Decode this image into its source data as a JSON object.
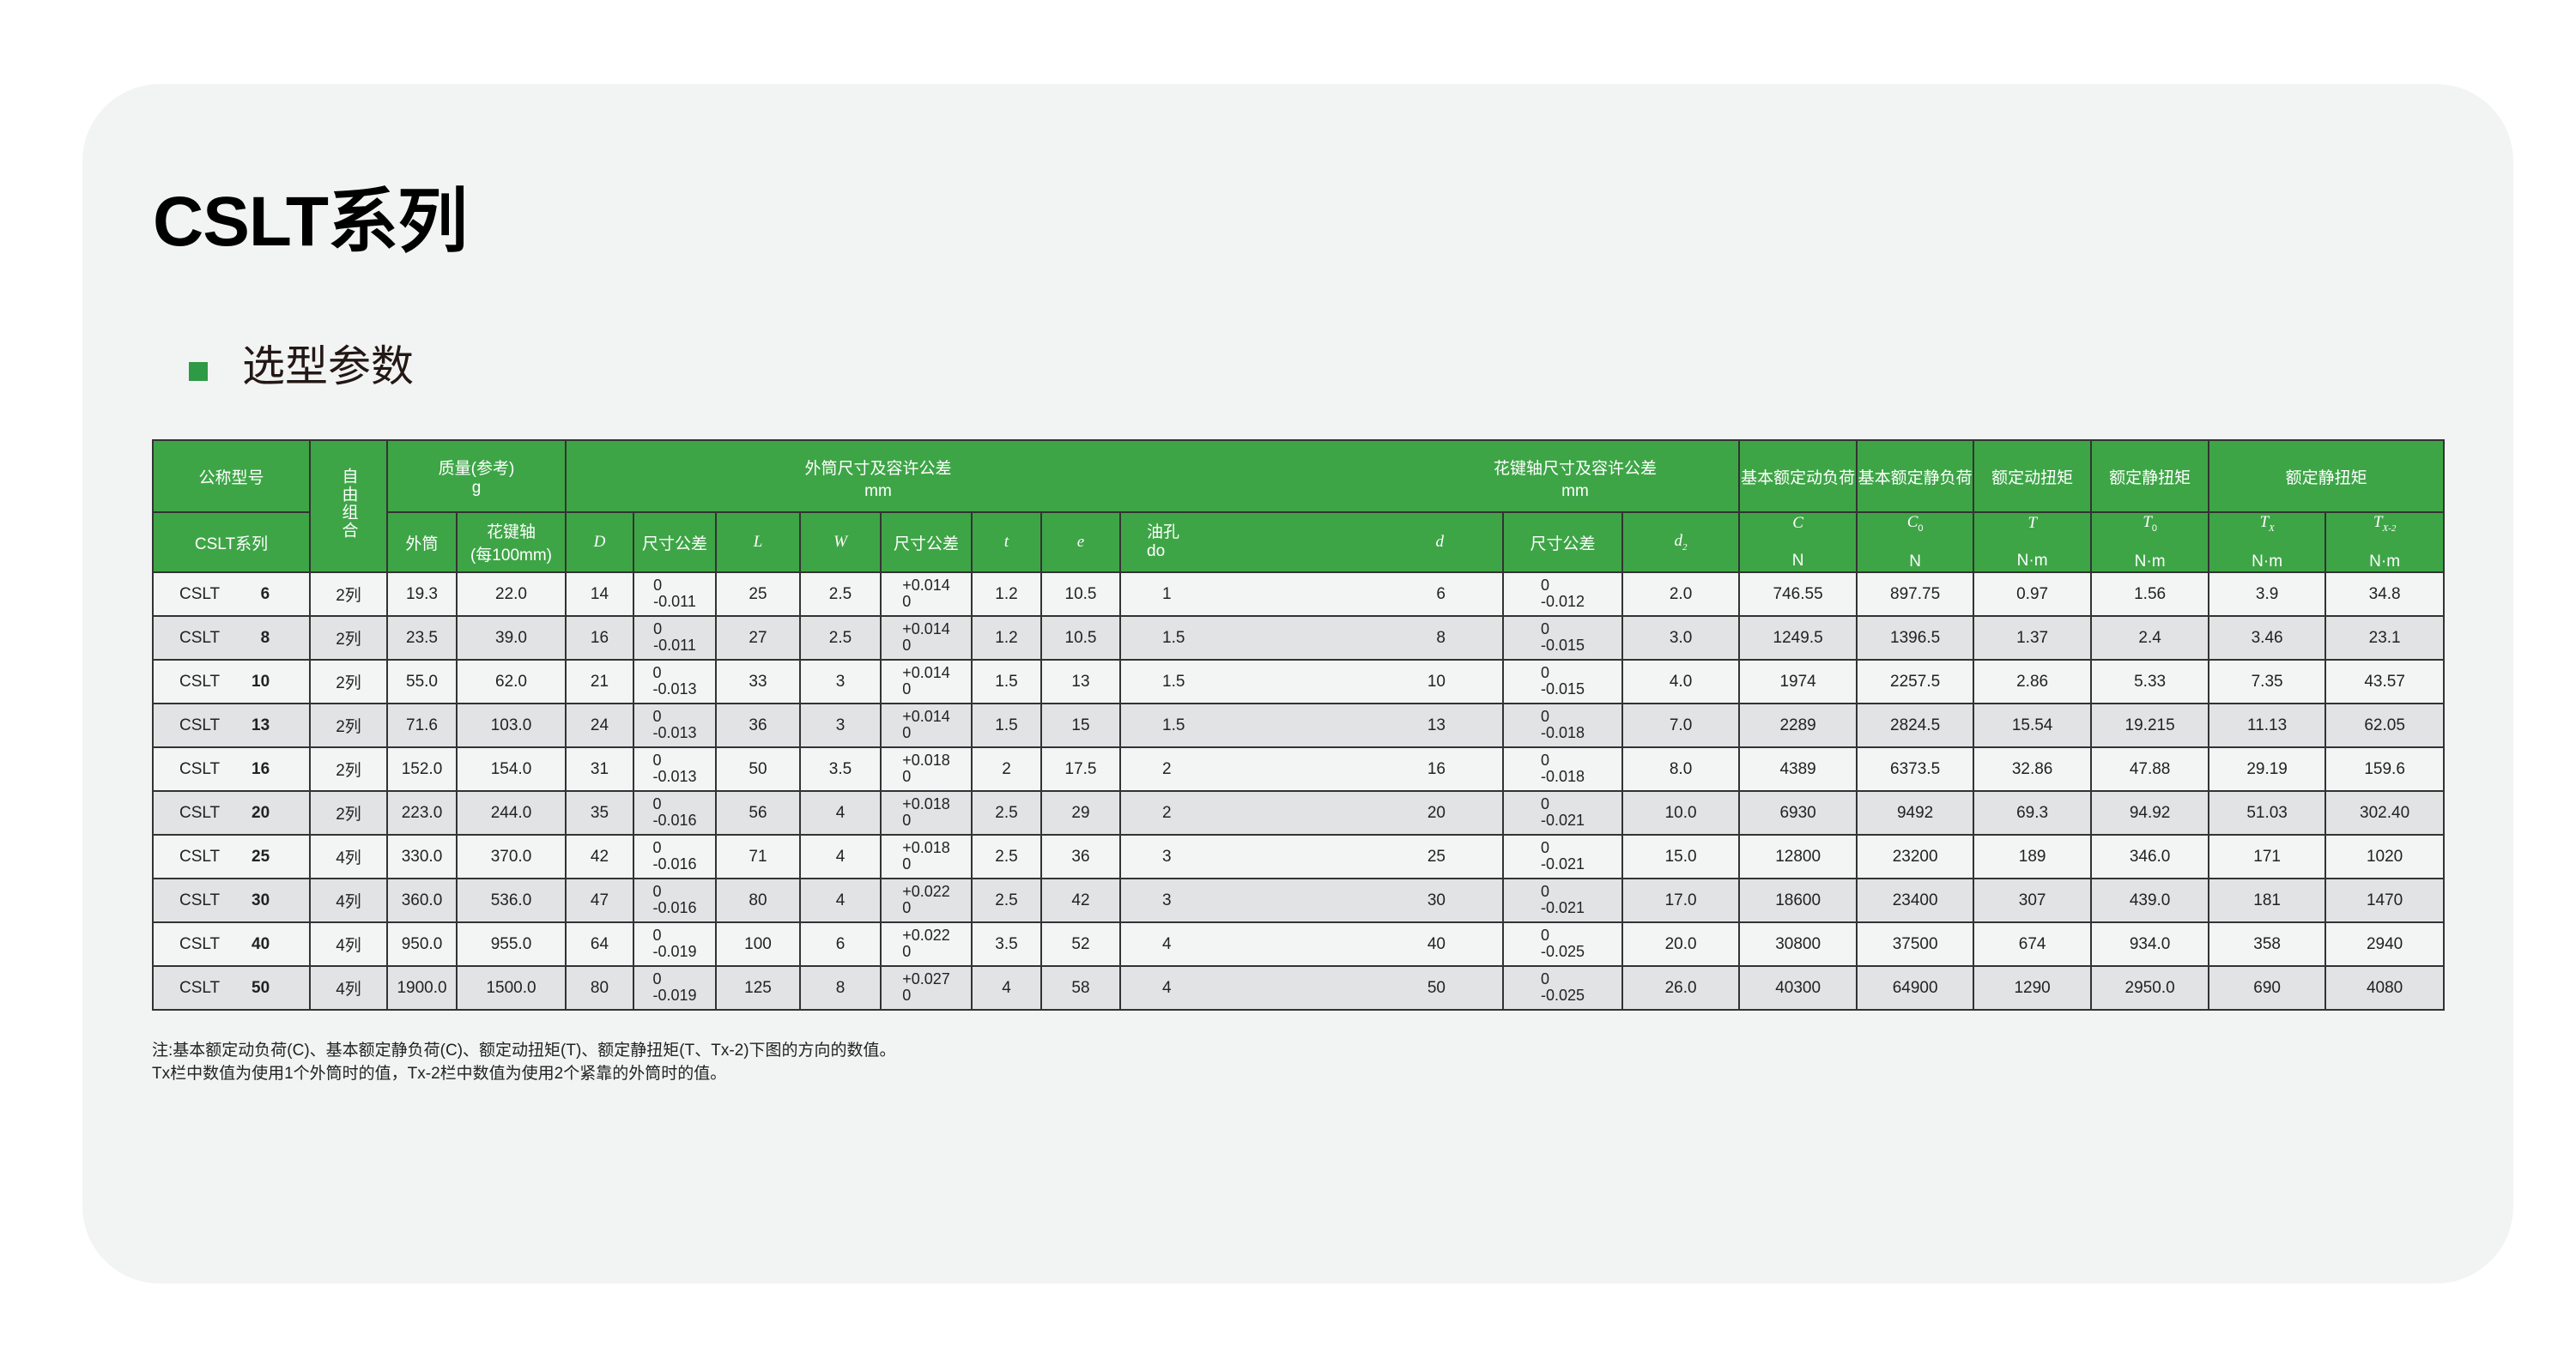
{
  "title": "CSLT系列",
  "subtitle": "选型参数",
  "colors": {
    "header_green": "#3ea547",
    "bullet_green": "#2e9a45",
    "row_light": "#f3f4f4",
    "row_dark": "#e2e3e4"
  },
  "header": {
    "model": "公称型号",
    "combo": "自由组合",
    "mass": "质量(参考)",
    "mass_unit": "g",
    "outer": "外筒尺寸及容许公差",
    "outer_unit": "mm",
    "spline": "花键轴尺寸及容许公差",
    "spline_unit": "mm",
    "C_title": "基本额定动负荷",
    "C0_title": "基本额定静负荷",
    "T_title": "额定动扭矩",
    "T0_title": "额定静扭矩",
    "Tx_title": "额定静扭矩",
    "series": "CSLT系列",
    "mass_outer": "外筒",
    "mass_spline": "花键轴",
    "mass_spline_unit": "(每100mm)",
    "D": "D",
    "tol": "尺寸公差",
    "L": "L",
    "W": "W",
    "t": "t",
    "e": "e",
    "oil": "油孔",
    "oil_sym": "do",
    "d": "d",
    "d2": "d",
    "C": "C",
    "C0": "C",
    "T": "T",
    "T0": "T",
    "Tx": "T",
    "Tx2": "T",
    "sub0": "0",
    "subX": "X",
    "subX2": "X-2",
    "sub2": "2",
    "N": "N",
    "Nm": "N·m"
  },
  "rows": [
    {
      "prefix": "CSLT",
      "size": "6",
      "combo": "2列",
      "m_outer": "19.3",
      "m_spline": "22.0",
      "D": "14",
      "D_tol": [
        "0",
        "-0.011"
      ],
      "L": "25",
      "W": "2.5",
      "W_tol": [
        "+0.014",
        "0"
      ],
      "t": "1.2",
      "e": "10.5",
      "oil": "1",
      "d": "6",
      "d_tol": [
        "0",
        "-0.012"
      ],
      "d2": "2.0",
      "C": "746.55",
      "C0": "897.75",
      "T": "0.97",
      "T0": "1.56",
      "Tx": "3.9",
      "Tx2": "34.8"
    },
    {
      "prefix": "CSLT",
      "size": "8",
      "combo": "2列",
      "m_outer": "23.5",
      "m_spline": "39.0",
      "D": "16",
      "D_tol": [
        "0",
        "-0.011"
      ],
      "L": "27",
      "W": "2.5",
      "W_tol": [
        "+0.014",
        "0"
      ],
      "t": "1.2",
      "e": "10.5",
      "oil": "1.5",
      "d": "8",
      "d_tol": [
        "0",
        "-0.015"
      ],
      "d2": "3.0",
      "C": "1249.5",
      "C0": "1396.5",
      "T": "1.37",
      "T0": "2.4",
      "Tx": "3.46",
      "Tx2": "23.1"
    },
    {
      "prefix": "CSLT",
      "size": "10",
      "combo": "2列",
      "m_outer": "55.0",
      "m_spline": "62.0",
      "D": "21",
      "D_tol": [
        "0",
        "-0.013"
      ],
      "L": "33",
      "W": "3",
      "W_tol": [
        "+0.014",
        "0"
      ],
      "t": "1.5",
      "e": "13",
      "oil": "1.5",
      "d": "10",
      "d_tol": [
        "0",
        "-0.015"
      ],
      "d2": "4.0",
      "C": "1974",
      "C0": "2257.5",
      "T": "2.86",
      "T0": "5.33",
      "Tx": "7.35",
      "Tx2": "43.57"
    },
    {
      "prefix": "CSLT",
      "size": "13",
      "combo": "2列",
      "m_outer": "71.6",
      "m_spline": "103.0",
      "D": "24",
      "D_tol": [
        "0",
        "-0.013"
      ],
      "L": "36",
      "W": "3",
      "W_tol": [
        "+0.014",
        "0"
      ],
      "t": "1.5",
      "e": "15",
      "oil": "1.5",
      "d": "13",
      "d_tol": [
        "0",
        "-0.018"
      ],
      "d2": "7.0",
      "C": "2289",
      "C0": "2824.5",
      "T": "15.54",
      "T0": "19.215",
      "Tx": "11.13",
      "Tx2": "62.05"
    },
    {
      "prefix": "CSLT",
      "size": "16",
      "combo": "2列",
      "m_outer": "152.0",
      "m_spline": "154.0",
      "D": "31",
      "D_tol": [
        "0",
        "-0.013"
      ],
      "L": "50",
      "W": "3.5",
      "W_tol": [
        "+0.018",
        "0"
      ],
      "t": "2",
      "e": "17.5",
      "oil": "2",
      "d": "16",
      "d_tol": [
        "0",
        "-0.018"
      ],
      "d2": "8.0",
      "C": "4389",
      "C0": "6373.5",
      "T": "32.86",
      "T0": "47.88",
      "Tx": "29.19",
      "Tx2": "159.6"
    },
    {
      "prefix": "CSLT",
      "size": "20",
      "combo": "2列",
      "m_outer": "223.0",
      "m_spline": "244.0",
      "D": "35",
      "D_tol": [
        "0",
        "-0.016"
      ],
      "L": "56",
      "W": "4",
      "W_tol": [
        "+0.018",
        "0"
      ],
      "t": "2.5",
      "e": "29",
      "oil": "2",
      "d": "20",
      "d_tol": [
        "0",
        "-0.021"
      ],
      "d2": "10.0",
      "C": "6930",
      "C0": "9492",
      "T": "69.3",
      "T0": "94.92",
      "Tx": "51.03",
      "Tx2": "302.40"
    },
    {
      "prefix": "CSLT",
      "size": "25",
      "combo": "4列",
      "m_outer": "330.0",
      "m_spline": "370.0",
      "D": "42",
      "D_tol": [
        "0",
        "-0.016"
      ],
      "L": "71",
      "W": "4",
      "W_tol": [
        "+0.018",
        "0"
      ],
      "t": "2.5",
      "e": "36",
      "oil": "3",
      "d": "25",
      "d_tol": [
        "0",
        "-0.021"
      ],
      "d2": "15.0",
      "C": "12800",
      "C0": "23200",
      "T": "189",
      "T0": "346.0",
      "Tx": "171",
      "Tx2": "1020"
    },
    {
      "prefix": "CSLT",
      "size": "30",
      "combo": "4列",
      "m_outer": "360.0",
      "m_spline": "536.0",
      "D": "47",
      "D_tol": [
        "0",
        "-0.016"
      ],
      "L": "80",
      "W": "4",
      "W_tol": [
        "+0.022",
        "0"
      ],
      "t": "2.5",
      "e": "42",
      "oil": "3",
      "d": "30",
      "d_tol": [
        "0",
        "-0.021"
      ],
      "d2": "17.0",
      "C": "18600",
      "C0": "23400",
      "T": "307",
      "T0": "439.0",
      "Tx": "181",
      "Tx2": "1470"
    },
    {
      "prefix": "CSLT",
      "size": "40",
      "combo": "4列",
      "m_outer": "950.0",
      "m_spline": "955.0",
      "D": "64",
      "D_tol": [
        "0",
        "-0.019"
      ],
      "L": "100",
      "W": "6",
      "W_tol": [
        "+0.022",
        "0"
      ],
      "t": "3.5",
      "e": "52",
      "oil": "4",
      "d": "40",
      "d_tol": [
        "0",
        "-0.025"
      ],
      "d2": "20.0",
      "C": "30800",
      "C0": "37500",
      "T": "674",
      "T0": "934.0",
      "Tx": "358",
      "Tx2": "2940"
    },
    {
      "prefix": "CSLT",
      "size": "50",
      "combo": "4列",
      "m_outer": "1900.0",
      "m_spline": "1500.0",
      "D": "80",
      "D_tol": [
        "0",
        "-0.019"
      ],
      "L": "125",
      "W": "8",
      "W_tol": [
        "+0.027",
        "0"
      ],
      "t": "4",
      "e": "58",
      "oil": "4",
      "d": "50",
      "d_tol": [
        "0",
        "-0.025"
      ],
      "d2": "26.0",
      "C": "40300",
      "C0": "64900",
      "T": "1290",
      "T0": "2950.0",
      "Tx": "690",
      "Tx2": "4080"
    }
  ],
  "notes": [
    "注:基本额定动负荷(C)、基本额定静负荷(C)、额定动扭矩(T)、额定静扭矩(T、Tx-2)下图的方向的数值。",
    "Tx栏中数值为使用1个外筒时的值，Tx-2栏中数值为使用2个紧靠的外筒时的值。"
  ]
}
